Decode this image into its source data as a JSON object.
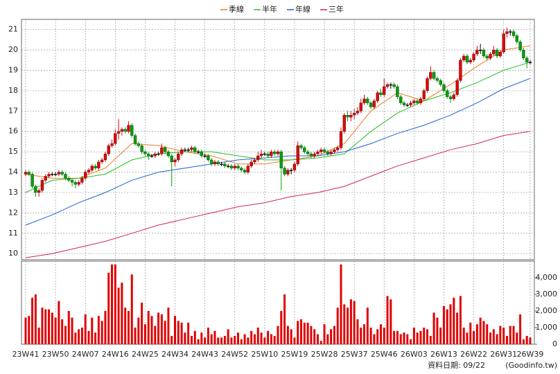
{
  "chart_data": {
    "type": "candlestick",
    "categories": [
      "23W41",
      null,
      null,
      null,
      null,
      null,
      null,
      null,
      null,
      "23W50",
      null,
      null,
      null,
      null,
      null,
      null,
      null,
      null,
      "24W07",
      null,
      null,
      null,
      null,
      null,
      null,
      null,
      null,
      "24W16",
      null,
      null,
      null,
      null,
      null,
      null,
      null,
      null,
      "24W25",
      null,
      null,
      null,
      null,
      null,
      null,
      null,
      null,
      "24W34",
      null,
      null,
      null,
      null,
      null,
      null,
      null,
      null,
      "24W43",
      null,
      null,
      null,
      null,
      null,
      null,
      null,
      null,
      "24W52",
      null,
      null,
      null,
      null,
      null,
      null,
      null,
      null,
      "25W10",
      null,
      null,
      null,
      null,
      null,
      null,
      null,
      null,
      "25W19",
      null,
      null,
      null,
      null,
      null,
      null,
      null,
      null,
      "25W28",
      null,
      null,
      null,
      null,
      null,
      null,
      null,
      null,
      "25W37",
      null,
      null,
      null,
      null,
      null,
      null,
      null,
      null,
      "25W46",
      null,
      null,
      null,
      null,
      null,
      null,
      null,
      null,
      "26W03",
      null,
      null,
      null,
      null,
      null,
      null,
      null,
      null,
      "26W13",
      null,
      null,
      null,
      null,
      null,
      null,
      null,
      null,
      "26W22",
      null,
      null,
      null,
      null,
      null,
      null,
      null,
      null,
      "26W31",
      null,
      null,
      null,
      null,
      null,
      null,
      null,
      "26W39"
    ],
    "open": [
      13.9,
      14.0,
      13.9,
      13.3,
      13.0,
      13.1,
      13.6,
      13.8,
      13.9,
      13.9,
      13.9,
      14.0,
      13.9,
      13.7,
      13.6,
      13.5,
      13.4,
      13.5,
      13.7,
      14.0,
      14.1,
      14.3,
      14.2,
      14.5,
      14.6,
      14.9,
      15.3,
      15.4,
      15.9,
      16.0,
      16.1,
      16.0,
      16.3,
      15.8,
      15.4,
      15.3,
      15.0,
      14.9,
      14.8,
      14.8,
      14.9,
      14.9,
      15.2,
      15.0,
      14.8,
      14.5,
      14.6,
      14.9,
      15.1,
      15.1,
      15.1,
      15.2,
      15.0,
      15.0,
      14.8,
      14.8,
      14.6,
      14.4,
      14.5,
      14.4,
      14.4,
      14.3,
      14.3,
      14.2,
      14.3,
      14.2,
      14.1,
      14.0,
      14.3,
      14.5,
      14.6,
      14.8,
      14.9,
      14.9,
      14.8,
      15.0,
      14.9,
      15.0,
      14.2,
      13.9,
      14.1,
      14.1,
      14.4,
      15.3,
      15.2,
      15.0,
      14.9,
      14.8,
      14.9,
      15.0,
      15.1,
      15.0,
      14.9,
      15.0,
      15.1,
      15.2,
      16.0,
      16.8,
      16.7,
      16.8,
      16.9,
      17.0,
      17.4,
      17.6,
      17.4,
      17.2,
      17.5,
      17.9,
      17.8,
      18.2,
      18.3,
      18.3,
      18.2,
      17.7,
      17.4,
      17.3,
      17.3,
      17.4,
      17.5,
      17.4,
      17.6,
      18.0,
      18.6,
      18.9,
      18.6,
      18.5,
      18.3,
      18.0,
      17.7,
      17.6,
      17.8,
      18.5,
      19.5,
      19.7,
      19.4,
      19.5,
      19.8,
      20.0,
      20.0,
      19.7,
      19.6,
      19.8,
      20.0,
      19.7,
      19.9,
      20.8,
      20.9,
      20.9,
      20.7,
      20.4,
      20.0,
      19.6,
      19.4
    ],
    "high": [
      14.1,
      14.1,
      14.0,
      13.4,
      13.2,
      13.7,
      13.9,
      14.0,
      14.0,
      14.0,
      14.1,
      14.1,
      14.0,
      13.8,
      13.7,
      13.6,
      13.6,
      13.8,
      14.1,
      14.2,
      14.4,
      14.4,
      14.6,
      14.7,
      15.0,
      15.4,
      15.6,
      16.1,
      16.6,
      16.2,
      16.2,
      16.5,
      16.4,
      15.9,
      15.5,
      15.4,
      15.1,
      15.0,
      14.9,
      15.0,
      15.0,
      15.4,
      15.3,
      15.1,
      14.9,
      14.7,
      15.0,
      15.2,
      15.2,
      15.2,
      15.3,
      15.3,
      15.1,
      15.1,
      14.9,
      14.9,
      14.7,
      14.6,
      14.6,
      14.5,
      14.5,
      14.4,
      14.4,
      14.4,
      14.4,
      14.3,
      14.2,
      14.4,
      14.6,
      14.7,
      15.0,
      15.1,
      15.0,
      15.0,
      15.1,
      15.1,
      15.1,
      15.1,
      14.3,
      14.2,
      14.2,
      14.5,
      15.5,
      15.4,
      15.3,
      15.1,
      15.0,
      15.0,
      15.1,
      15.2,
      15.2,
      15.1,
      15.1,
      15.2,
      15.3,
      16.2,
      16.9,
      17.0,
      17.0,
      17.1,
      17.2,
      17.6,
      17.8,
      17.7,
      17.5,
      17.6,
      18.0,
      18.1,
      18.6,
      18.4,
      18.4,
      18.4,
      18.3,
      17.8,
      17.5,
      17.4,
      17.5,
      17.6,
      17.6,
      17.7,
      18.1,
      18.7,
      19.2,
      19.0,
      18.7,
      18.6,
      18.4,
      18.1,
      17.8,
      17.9,
      18.6,
      19.6,
      19.8,
      19.8,
      19.6,
      19.9,
      20.2,
      20.3,
      20.1,
      19.8,
      19.9,
      20.2,
      20.1,
      20.0,
      21.0,
      21.1,
      21.0,
      21.0,
      20.8,
      20.5,
      20.1,
      19.7,
      19.5
    ],
    "low": [
      13.8,
      13.8,
      13.2,
      12.8,
      12.8,
      13.0,
      13.5,
      13.7,
      13.8,
      13.8,
      13.8,
      13.8,
      13.6,
      13.5,
      13.3,
      13.2,
      13.3,
      13.4,
      13.6,
      13.9,
      14.0,
      14.1,
      14.1,
      14.4,
      14.5,
      14.8,
      15.2,
      15.3,
      15.6,
      15.8,
      15.9,
      15.9,
      15.7,
      15.3,
      15.2,
      14.9,
      14.8,
      14.6,
      14.7,
      14.7,
      14.8,
      14.8,
      14.9,
      14.7,
      13.3,
      14.3,
      14.5,
      14.8,
      15.0,
      15.0,
      15.0,
      14.9,
      14.9,
      14.7,
      14.7,
      14.5,
      14.3,
      14.3,
      14.3,
      14.3,
      14.2,
      14.2,
      14.1,
      14.1,
      14.1,
      14.0,
      13.9,
      13.9,
      14.2,
      14.4,
      14.5,
      14.7,
      14.8,
      14.7,
      14.7,
      14.8,
      14.8,
      13.1,
      13.8,
      13.8,
      13.9,
      14.0,
      14.3,
      15.1,
      14.9,
      14.8,
      14.7,
      14.7,
      14.8,
      14.9,
      14.9,
      14.8,
      14.8,
      14.9,
      15.0,
      15.1,
      15.9,
      16.5,
      16.5,
      16.6,
      16.8,
      16.9,
      17.3,
      17.3,
      17.1,
      17.1,
      17.4,
      17.7,
      17.7,
      18.1,
      18.1,
      18.1,
      17.6,
      17.3,
      17.2,
      17.2,
      17.2,
      17.3,
      17.3,
      17.3,
      17.5,
      17.9,
      18.5,
      18.5,
      18.4,
      18.2,
      17.9,
      17.6,
      17.4,
      17.5,
      17.7,
      18.4,
      19.4,
      19.3,
      19.3,
      19.4,
      19.7,
      19.8,
      19.6,
      19.5,
      19.5,
      19.7,
      19.6,
      19.6,
      19.8,
      20.6,
      20.7,
      20.6,
      20.3,
      19.9,
      19.5,
      19.1,
      19.3
    ],
    "close": [
      14.0,
      13.9,
      13.3,
      13.0,
      13.1,
      13.6,
      13.8,
      13.9,
      13.9,
      13.9,
      14.0,
      13.9,
      13.7,
      13.6,
      13.5,
      13.4,
      13.5,
      13.7,
      14.0,
      14.1,
      14.3,
      14.2,
      14.5,
      14.6,
      14.9,
      15.3,
      15.4,
      15.9,
      16.0,
      16.1,
      16.0,
      16.3,
      15.8,
      15.4,
      15.3,
      15.0,
      14.9,
      14.8,
      14.8,
      14.9,
      14.9,
      15.2,
      15.0,
      14.8,
      14.5,
      14.6,
      14.9,
      15.1,
      15.1,
      15.1,
      15.2,
      15.0,
      15.0,
      14.8,
      14.8,
      14.6,
      14.4,
      14.5,
      14.4,
      14.4,
      14.3,
      14.3,
      14.2,
      14.3,
      14.2,
      14.1,
      14.0,
      14.3,
      14.5,
      14.6,
      14.8,
      14.9,
      14.9,
      14.8,
      15.0,
      14.9,
      15.0,
      14.2,
      13.9,
      14.1,
      14.1,
      14.4,
      15.3,
      15.2,
      15.0,
      14.9,
      14.8,
      14.9,
      15.0,
      15.1,
      15.0,
      14.9,
      15.0,
      15.1,
      15.2,
      16.0,
      16.8,
      16.7,
      16.8,
      16.9,
      17.0,
      17.4,
      17.6,
      17.4,
      17.2,
      17.5,
      17.9,
      17.8,
      18.2,
      18.3,
      18.3,
      18.2,
      17.7,
      17.4,
      17.3,
      17.3,
      17.4,
      17.5,
      17.4,
      17.6,
      18.0,
      18.6,
      18.9,
      18.6,
      18.5,
      18.3,
      18.0,
      17.7,
      17.6,
      17.8,
      18.5,
      19.5,
      19.7,
      19.4,
      19.5,
      19.8,
      20.0,
      20.0,
      19.7,
      19.6,
      19.8,
      20.0,
      19.7,
      19.9,
      20.8,
      20.9,
      20.9,
      20.7,
      20.4,
      20.0,
      19.6,
      19.4,
      19.4
    ],
    "up_color": "#e00000",
    "down_color": "#00a000",
    "flat_color": "#000000",
    "series": [
      {
        "name": "季線",
        "color": "#f07820",
        "x": [
          0,
          8,
          16,
          24,
          32,
          40,
          48,
          56,
          64,
          72,
          80,
          88,
          96,
          104,
          112,
          120,
          128,
          136,
          144,
          152
        ],
        "values": [
          13.9,
          13.7,
          13.7,
          14.2,
          15.4,
          15.3,
          15.0,
          14.8,
          14.4,
          14.4,
          14.6,
          14.8,
          15.4,
          17.0,
          17.9,
          17.5,
          18.3,
          19.2,
          20.0,
          20.2
        ]
      },
      {
        "name": "半年",
        "color": "#20c020",
        "x": [
          0,
          8,
          16,
          24,
          32,
          40,
          48,
          56,
          64,
          72,
          80,
          88,
          96,
          104,
          112,
          120,
          128,
          136,
          144,
          152
        ],
        "values": [
          13.0,
          13.6,
          13.7,
          13.9,
          14.6,
          14.9,
          15.0,
          15.0,
          14.8,
          14.6,
          14.6,
          14.7,
          14.9,
          16.0,
          16.9,
          17.5,
          17.9,
          18.4,
          19.0,
          19.4
        ]
      },
      {
        "name": "年線",
        "color": "#2060d0",
        "x": [
          0,
          8,
          16,
          24,
          32,
          40,
          48,
          56,
          64,
          72,
          80,
          88,
          96,
          104,
          112,
          120,
          128,
          136,
          144,
          152
        ],
        "values": [
          11.4,
          11.9,
          12.5,
          13.0,
          13.6,
          14.0,
          14.2,
          14.4,
          14.6,
          14.7,
          14.8,
          14.8,
          15.0,
          15.4,
          15.9,
          16.3,
          16.8,
          17.4,
          18.1,
          18.6
        ]
      },
      {
        "name": "三年",
        "color": "#d0206a",
        "x": [
          0,
          8,
          16,
          24,
          32,
          40,
          48,
          56,
          64,
          72,
          80,
          88,
          96,
          104,
          112,
          120,
          128,
          136,
          144,
          152
        ],
        "values": [
          9.8,
          10.0,
          10.3,
          10.6,
          11.0,
          11.4,
          11.7,
          12.0,
          12.3,
          12.5,
          12.8,
          13.0,
          13.3,
          13.8,
          14.3,
          14.7,
          15.1,
          15.4,
          15.8,
          16.0
        ]
      }
    ],
    "ylim": [
      9.7,
      21.5
    ],
    "yticks": [
      10,
      11,
      12,
      13,
      14,
      15,
      16,
      17,
      18,
      19,
      20,
      21
    ],
    "grid": true,
    "volume": {
      "color": "#e00000",
      "ylim": [
        0,
        5000
      ],
      "yticks": [
        0,
        {
          "value": 1000,
          "label": "1,000"
        },
        {
          "value": 2000,
          "label": "2,000"
        },
        {
          "value": 3000,
          "label": "3,000"
        },
        {
          "value": 4000,
          "label": "4,000"
        }
      ],
      "values": [
        1600,
        1700,
        2800,
        3000,
        1000,
        2200,
        2100,
        2100,
        1900,
        1600,
        2600,
        1500,
        1100,
        2000,
        1600,
        700,
        900,
        1000,
        1800,
        800,
        1600,
        700,
        1700,
        1400,
        2000,
        4300,
        4800,
        4800,
        3400,
        3700,
        2200,
        2000,
        4200,
        1000,
        1600,
        2500,
        1200,
        2000,
        1700,
        1100,
        1900,
        1800,
        1400,
        2200,
        500,
        1700,
        1400,
        1300,
        700,
        1300,
        500,
        800,
        300,
        700,
        400,
        1000,
        600,
        800,
        400,
        400,
        500,
        900,
        400,
        500,
        700,
        300,
        600,
        400,
        800,
        600,
        1000,
        700,
        400,
        800,
        600,
        500,
        1100,
        2000,
        3000,
        1100,
        900,
        400,
        1400,
        1500,
        1300,
        1300,
        1100,
        900,
        600,
        200,
        1200,
        600,
        900,
        1100,
        2200,
        4800,
        2400,
        2200,
        2700,
        2600,
        1500,
        1000,
        1200,
        2200,
        1000,
        600,
        900,
        1200,
        1000,
        2900,
        2700,
        800,
        800,
        600,
        700,
        600,
        300,
        1000,
        700,
        800,
        1000,
        900,
        500,
        1900,
        1600,
        1000,
        2300,
        2100,
        2400,
        2800,
        1900,
        2900,
        1000,
        700,
        1300,
        800,
        1200,
        1600,
        1400,
        1200,
        700,
        900,
        600,
        1100,
        1000,
        500,
        1100,
        1100,
        700,
        1800,
        300,
        500,
        400
      ]
    },
    "date_label": "資料日期: 09/22",
    "source": "(Goodinfo.tw)"
  }
}
